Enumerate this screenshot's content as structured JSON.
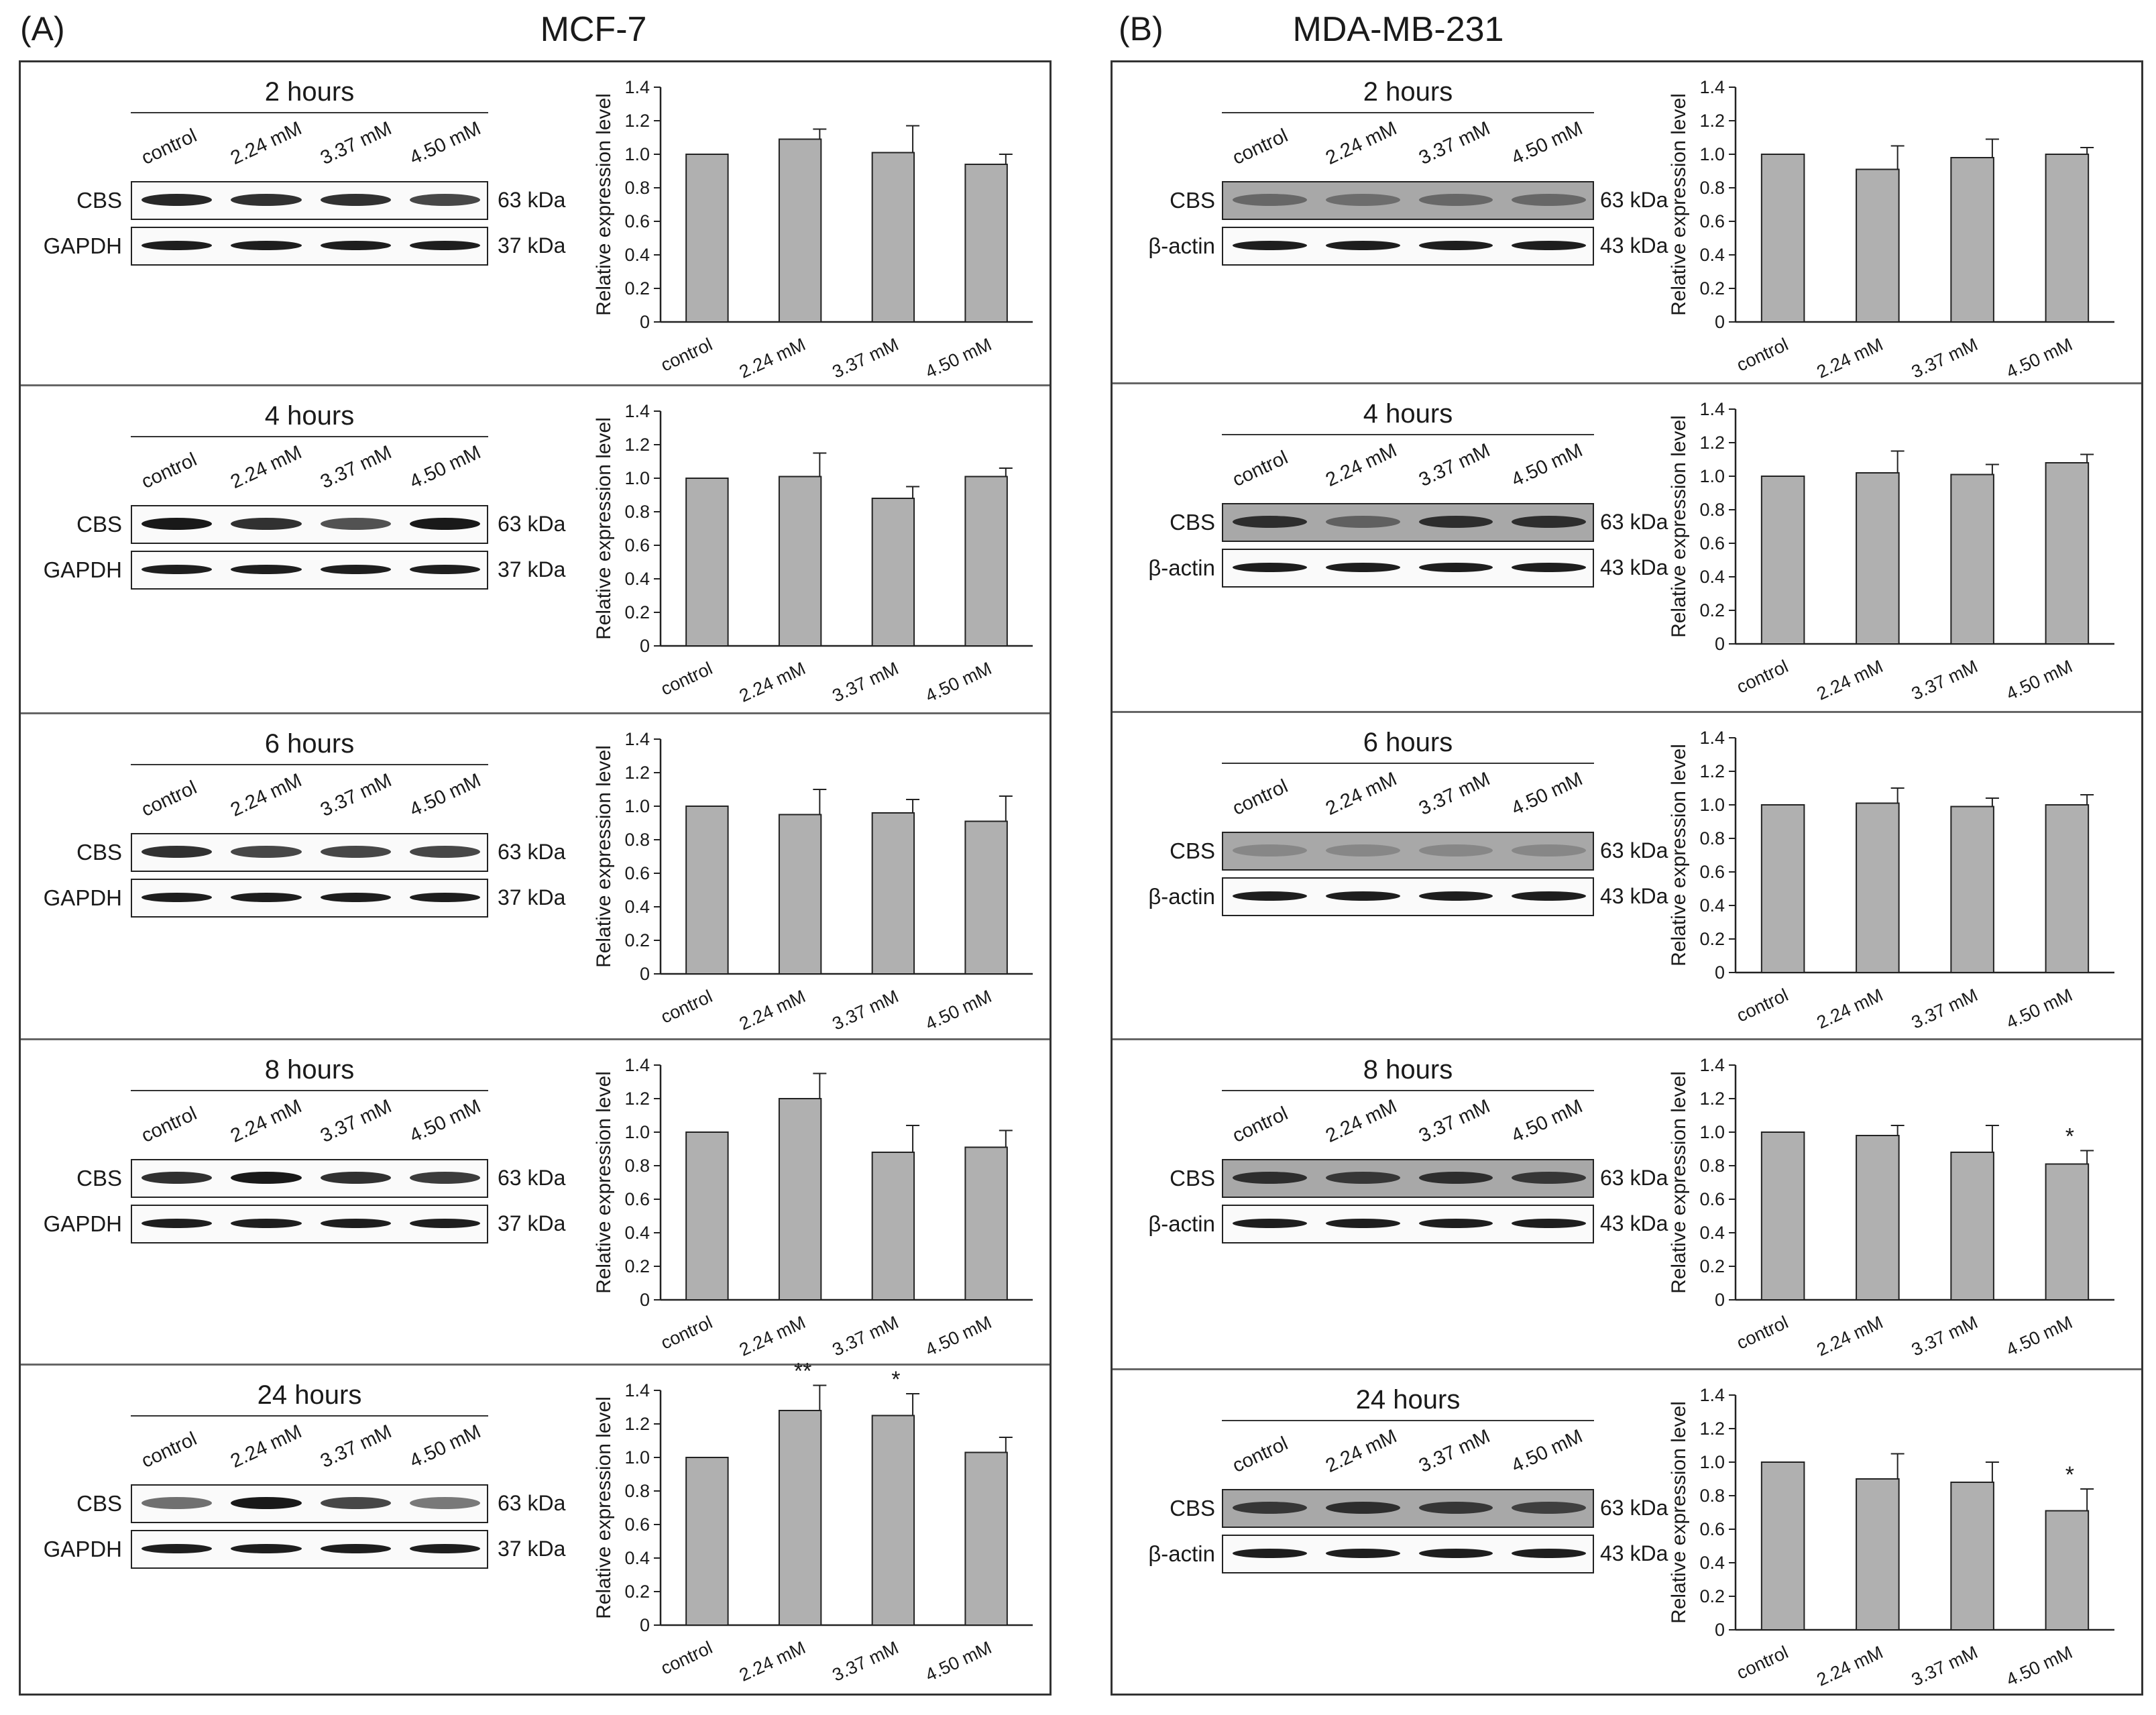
{
  "panels": [
    {
      "letter": "(A)",
      "title": "MCF-7",
      "loading_label": "GAPDH",
      "loading_kda": "37 kDa",
      "rows": [
        {
          "time": "2 hours"
        },
        {
          "time": "4 hours"
        },
        {
          "time": "6 hours"
        },
        {
          "time": "8 hours"
        },
        {
          "time": "24 hours"
        }
      ]
    },
    {
      "letter": "(B)",
      "title": "MDA-MB-231",
      "loading_label": "β-actin",
      "loading_kda": "43 kDa",
      "rows": [
        {
          "time": "2 hours"
        },
        {
          "time": "4 hours"
        },
        {
          "time": "6 hours"
        },
        {
          "time": "8 hours"
        },
        {
          "time": "24 hours"
        }
      ]
    }
  ],
  "lanes": [
    "control",
    "2.24 mM",
    "3.37 mM",
    "4.50 mM"
  ],
  "cbs_label": "CBS",
  "cbs_kda": "63 kDa",
  "chart_data": [
    {
      "type": "bar",
      "panel": "A",
      "subtitle": "MCF-7 2 hours",
      "categories": [
        "control",
        "2.24 mM",
        "3.37 mM",
        "4.50 mM"
      ],
      "values": [
        1.0,
        1.09,
        1.01,
        0.94
      ],
      "errors": [
        0,
        0.06,
        0.16,
        0.06
      ],
      "significance": [
        "",
        "",
        "",
        ""
      ],
      "ylabel": "Relative expression level",
      "ylim": [
        0,
        1.4
      ],
      "yticks": [
        "0",
        "0.2",
        "0.4",
        "0.6",
        "0.8",
        "1.0",
        "1.2",
        "1.4"
      ]
    },
    {
      "type": "bar",
      "panel": "A",
      "subtitle": "MCF-7 4 hours",
      "categories": [
        "control",
        "2.24 mM",
        "3.37 mM",
        "4.50 mM"
      ],
      "values": [
        1.0,
        1.01,
        0.88,
        1.01
      ],
      "errors": [
        0,
        0.14,
        0.07,
        0.05
      ],
      "significance": [
        "",
        "",
        "",
        ""
      ],
      "ylabel": "Relative expression level",
      "ylim": [
        0,
        1.4
      ],
      "yticks": [
        "0",
        "0.2",
        "0.4",
        "0.6",
        "0.8",
        "1.0",
        "1.2",
        "1.4"
      ]
    },
    {
      "type": "bar",
      "panel": "A",
      "subtitle": "MCF-7 6 hours",
      "categories": [
        "control",
        "2.24 mM",
        "3.37 mM",
        "4.50 mM"
      ],
      "values": [
        1.0,
        0.95,
        0.96,
        0.91
      ],
      "errors": [
        0,
        0.15,
        0.08,
        0.15
      ],
      "significance": [
        "",
        "",
        "",
        ""
      ],
      "ylabel": "Relative expression level",
      "ylim": [
        0,
        1.4
      ],
      "yticks": [
        "0",
        "0.2",
        "0.4",
        "0.6",
        "0.8",
        "1.0",
        "1.2",
        "1.4"
      ]
    },
    {
      "type": "bar",
      "panel": "A",
      "subtitle": "MCF-7 8 hours",
      "categories": [
        "control",
        "2.24 mM",
        "3.37 mM",
        "4.50 mM"
      ],
      "values": [
        1.0,
        1.2,
        0.88,
        0.91
      ],
      "errors": [
        0,
        0.15,
        0.16,
        0.1
      ],
      "significance": [
        "",
        "",
        "",
        ""
      ],
      "ylabel": "Relative expression level",
      "ylim": [
        0,
        1.4
      ],
      "yticks": [
        "0",
        "0.2",
        "0.4",
        "0.6",
        "0.8",
        "1.0",
        "1.2",
        "1.4"
      ]
    },
    {
      "type": "bar",
      "panel": "A",
      "subtitle": "MCF-7 24 hours",
      "categories": [
        "control",
        "2.24 mM",
        "3.37 mM",
        "4.50 mM"
      ],
      "values": [
        1.0,
        1.28,
        1.25,
        1.03
      ],
      "errors": [
        0,
        0.15,
        0.13,
        0.09
      ],
      "significance": [
        "",
        "**",
        "*",
        ""
      ],
      "ylabel": "Relative expression level",
      "ylim": [
        0,
        1.4
      ],
      "yticks": [
        "0",
        "0.2",
        "0.4",
        "0.6",
        "0.8",
        "1.0",
        "1.2",
        "1.4"
      ]
    },
    {
      "type": "bar",
      "panel": "B",
      "subtitle": "MDA-MB-231 2 hours",
      "categories": [
        "control",
        "2.24 mM",
        "3.37 mM",
        "4.50 mM"
      ],
      "values": [
        1.0,
        0.91,
        0.98,
        1.0
      ],
      "errors": [
        0,
        0.14,
        0.11,
        0.04
      ],
      "significance": [
        "",
        "",
        "",
        ""
      ],
      "ylabel": "Relative expression level",
      "ylim": [
        0,
        1.4
      ],
      "yticks": [
        "0",
        "0.2",
        "0.4",
        "0.6",
        "0.8",
        "1.0",
        "1.2",
        "1.4"
      ]
    },
    {
      "type": "bar",
      "panel": "B",
      "subtitle": "MDA-MB-231 4 hours",
      "categories": [
        "control",
        "2.24 mM",
        "3.37 mM",
        "4.50 mM"
      ],
      "values": [
        1.0,
        1.02,
        1.01,
        1.08
      ],
      "errors": [
        0,
        0.13,
        0.06,
        0.05
      ],
      "significance": [
        "",
        "",
        "",
        ""
      ],
      "ylabel": "Relative expression level",
      "ylim": [
        0,
        1.4
      ],
      "yticks": [
        "0",
        "0.2",
        "0.4",
        "0.6",
        "0.8",
        "1.0",
        "1.2",
        "1.4"
      ]
    },
    {
      "type": "bar",
      "panel": "B",
      "subtitle": "MDA-MB-231 6 hours",
      "categories": [
        "control",
        "2.24 mM",
        "3.37 mM",
        "4.50 mM"
      ],
      "values": [
        1.0,
        1.01,
        0.99,
        1.0
      ],
      "errors": [
        0,
        0.09,
        0.05,
        0.06
      ],
      "significance": [
        "",
        "",
        "",
        ""
      ],
      "ylabel": "Relative expression level",
      "ylim": [
        0,
        1.4
      ],
      "yticks": [
        "0",
        "0.2",
        "0.4",
        "0.6",
        "0.8",
        "1.0",
        "1.2",
        "1.4"
      ]
    },
    {
      "type": "bar",
      "panel": "B",
      "subtitle": "MDA-MB-231 8 hours",
      "categories": [
        "control",
        "2.24 mM",
        "3.37 mM",
        "4.50 mM"
      ],
      "values": [
        1.0,
        0.98,
        0.88,
        0.81
      ],
      "errors": [
        0,
        0.06,
        0.16,
        0.08
      ],
      "significance": [
        "",
        "",
        "",
        "*"
      ],
      "ylabel": "Relative expression level",
      "ylim": [
        0,
        1.4
      ],
      "yticks": [
        "0",
        "0.2",
        "0.4",
        "0.6",
        "0.8",
        "1.0",
        "1.2",
        "1.4"
      ]
    },
    {
      "type": "bar",
      "panel": "B",
      "subtitle": "MDA-MB-231 24 hours",
      "categories": [
        "control",
        "2.24 mM",
        "3.37 mM",
        "4.50 mM"
      ],
      "values": [
        1.0,
        0.9,
        0.88,
        0.71
      ],
      "errors": [
        0,
        0.15,
        0.12,
        0.13
      ],
      "significance": [
        "",
        "",
        "",
        "*"
      ],
      "ylabel": "Relative expression level",
      "ylim": [
        0,
        1.4
      ],
      "yticks": [
        "0",
        "0.2",
        "0.4",
        "0.6",
        "0.8",
        "1.0",
        "1.2",
        "1.4"
      ]
    }
  ]
}
